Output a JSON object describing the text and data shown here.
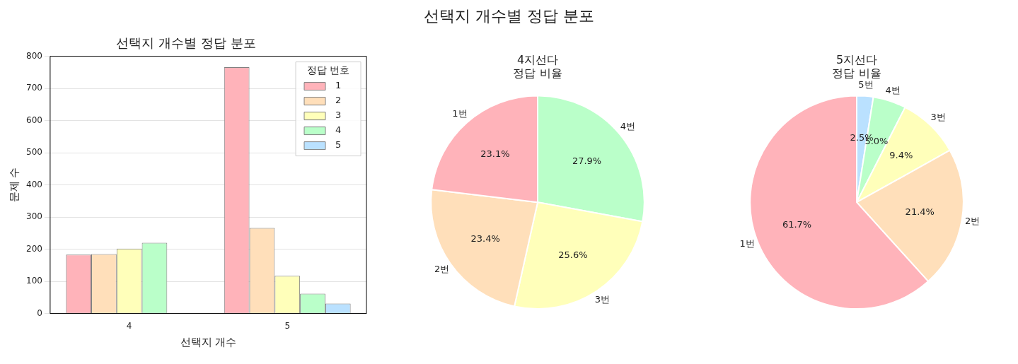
{
  "chart_data": [
    {
      "type": "other",
      "title": "선택지 개수별 정답 분포"
    },
    {
      "type": "bar",
      "title": "선택지 개수별 정답 분포",
      "xlabel": "선택지 개수",
      "ylabel": "문제 수",
      "legend_title": "정답 번호",
      "legend": "top right",
      "grid": "y",
      "categories": [
        "4",
        "5"
      ],
      "ylim": [
        0,
        800
      ],
      "yticks": [
        0,
        100,
        200,
        300,
        400,
        500,
        600,
        700,
        800
      ],
      "series": [
        {
          "name": "1",
          "color": "#ffb3ba",
          "values": [
            183,
            766
          ]
        },
        {
          "name": "2",
          "color": "#ffdfba",
          "values": [
            185,
            266
          ]
        },
        {
          "name": "3",
          "color": "#ffffba",
          "values": [
            202,
            117
          ]
        },
        {
          "name": "4",
          "color": "#baffc9",
          "values": [
            220,
            62
          ]
        },
        {
          "name": "5",
          "color": "#bae1ff",
          "values": [
            0,
            31
          ]
        }
      ]
    },
    {
      "type": "pie",
      "title": "4지선다\n정답 비율",
      "categories": [
        "4번",
        "3번",
        "2번",
        "1번"
      ],
      "values": [
        27.9,
        25.6,
        23.4,
        23.1
      ],
      "value_labels": [
        "27.9%",
        "25.6%",
        "23.4%",
        "23.1%"
      ],
      "colors": [
        "#baffc9",
        "#ffffba",
        "#ffdfba",
        "#ffb3ba"
      ]
    },
    {
      "type": "pie",
      "title": "5지선다\n정답 비율",
      "categories": [
        "5번",
        "4번",
        "3번",
        "2번",
        "1번"
      ],
      "values": [
        2.5,
        5.0,
        9.4,
        21.4,
        61.7
      ],
      "value_labels": [
        "2.5%",
        "5.0%",
        "9.4%",
        "21.4%",
        "61.7%"
      ],
      "colors": [
        "#bae1ff",
        "#baffc9",
        "#ffffba",
        "#ffdfba",
        "#ffb3ba"
      ]
    }
  ]
}
